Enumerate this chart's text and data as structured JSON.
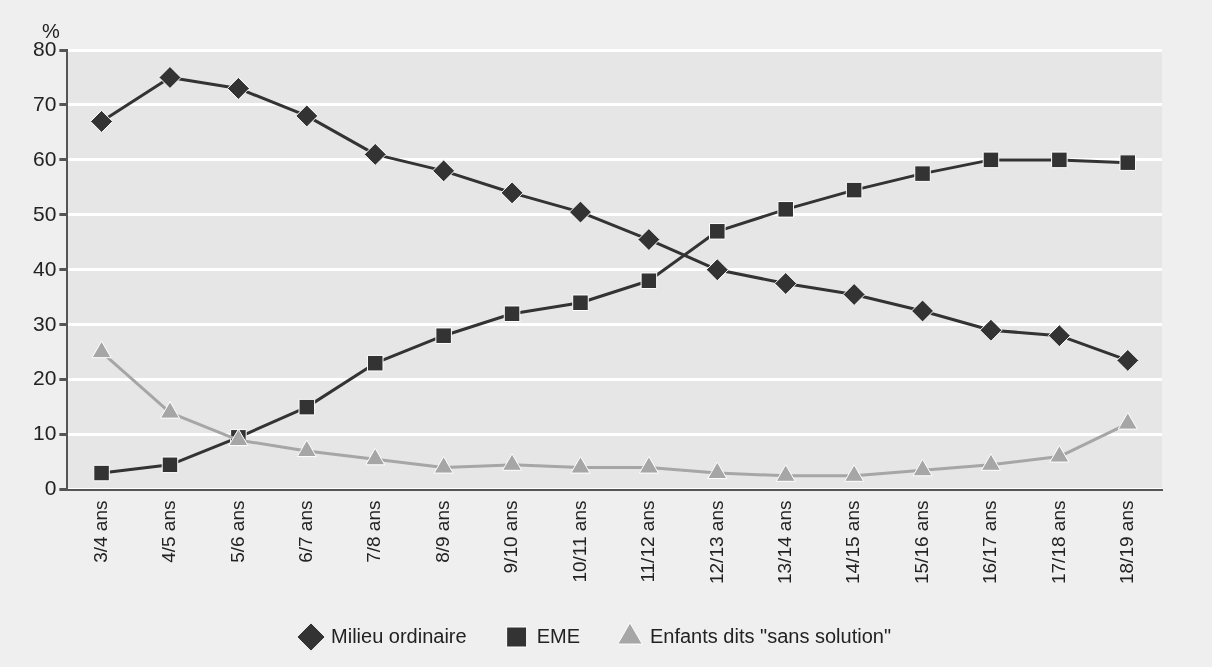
{
  "chart_data": {
    "type": "line",
    "ylabel": "%",
    "categories": [
      "3/4 ans",
      "4/5 ans",
      "5/6 ans",
      "6/7 ans",
      "7/8 ans",
      "8/9 ans",
      "9/10 ans",
      "10/11 ans",
      "11/12 ans",
      "12/13 ans",
      "13/14 ans",
      "14/15 ans",
      "15/16 ans",
      "16/17 ans",
      "17/18 ans",
      "18/19 ans"
    ],
    "series": [
      {
        "name": "Milieu ordinaire",
        "color": "#333333",
        "marker": "diamond",
        "values": [
          67,
          75,
          73,
          68,
          61,
          58,
          54,
          50.5,
          45.5,
          40,
          37.5,
          35.5,
          32.5,
          29,
          28,
          23.5
        ]
      },
      {
        "name": "EME",
        "color": "#333333",
        "marker": "square",
        "values": [
          3,
          4.5,
          9.5,
          15,
          23,
          28,
          32,
          34,
          38,
          47,
          51,
          54.5,
          57.5,
          60,
          60,
          59.5
        ]
      },
      {
        "name": "Enfants dits \"sans solution\"",
        "color": "#a6a6a6",
        "marker": "triangle",
        "values": [
          25,
          14,
          9,
          7,
          5.5,
          4,
          4.5,
          4,
          4,
          3,
          2.5,
          2.5,
          3.5,
          4.5,
          6,
          12
        ]
      }
    ],
    "ylim": [
      0,
      80
    ],
    "yticks": [
      0,
      10,
      20,
      30,
      40,
      50,
      60,
      70,
      80
    ],
    "grid": "y",
    "legend": "bottom",
    "line_style": "solid"
  }
}
